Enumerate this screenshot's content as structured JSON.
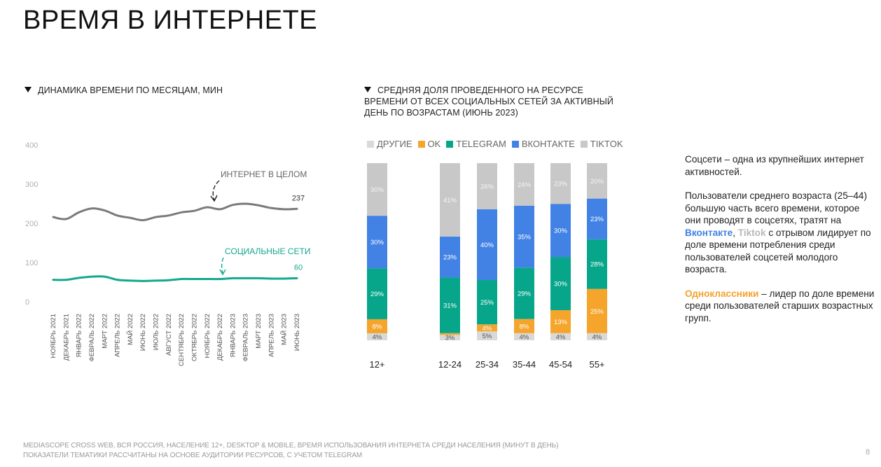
{
  "page": {
    "title": "ВРЕМЯ В ИНТЕРНЕТЕ",
    "page_number": "8"
  },
  "footer": {
    "line1": "MEDIASCOPE CROSS WEB, ВСЯ РОССИЯ, НАСЕЛЕНИЕ 12+, DESKTOP & MOBILE, ВРЕМЯ ИСПОЛЬЗОВАНИЯ ИНТЕРНЕТА СРЕДИ НАСЕЛЕНИЯ (МИНУТ В ДЕНЬ)",
    "line2": "ПОКАЗАТЕЛИ ТЕМАТИКИ РАССЧИТАНЫ НА ОСНОВЕ АУДИТОРИИ РЕСУРСОВ, С УЧЕТОМ TELEGRAM"
  },
  "side_text": {
    "p1": "Соцсети – одна из крупнейших интернет активностей.",
    "p2_a": "Пользователи среднего возраста (25–44) большую часть всего времени, которое они проводят в соцсетях, тратят на ",
    "p2_vk": "Вконтакте",
    "p2_sep": ", ",
    "p2_tt": "Tiktok",
    "p2_b": " с отрывом лидирует по доле времени потребления среди пользователей соцсетей молодого возраста.",
    "p3_ok": "Одноклассники",
    "p3_b": " – лидер по доле времени среди пользователей старших возрастных групп."
  },
  "colors": {
    "internet": "#7a7a7a",
    "social": "#13a88f",
    "other": "#d9d9d9",
    "ok": "#f5a52c",
    "telegram": "#07a68b",
    "vk": "#4282e5",
    "tiktok": "#c8c8c8"
  },
  "chart_data": [
    {
      "type": "line",
      "title": "ДИНАМИКА ВРЕМЕНИ ПО МЕСЯЦАМ, МИН",
      "xlabel": "",
      "ylabel": "",
      "ylim": [
        0,
        400
      ],
      "yticks": [
        "0",
        "100",
        "200",
        "300",
        "400"
      ],
      "ytick_values": [
        0,
        100,
        200,
        300,
        400
      ],
      "grid": false,
      "categories": [
        "НОЯБРЬ 2021",
        "ДЕКАБРЬ 2021",
        "ЯНВАРЬ 2022",
        "ФЕВРАЛЬ 2022",
        "МАРТ 2022",
        "АПРЕЛЬ 2022",
        "МАЙ 2022",
        "ИЮНЬ 2022",
        "ИЮЛЬ 2022",
        "АВГУСТ 2022",
        "СЕНТЯБРЬ 2022",
        "ОКТЯБРЬ 2022",
        "НОЯБРЬ 2022",
        "ДЕКАБРЬ 2022",
        "ЯНВАРЬ 2023",
        "ФЕВРАЛЬ 2023",
        "МАРТ 2023",
        "АПРЕЛЬ 2023",
        "МАЙ 2023",
        "ИЮНЬ 2023"
      ],
      "series": [
        {
          "name": "ИНТЕРНЕТ В ЦЕЛОМ",
          "key": "internet",
          "end_label": "237",
          "values": [
            216,
            211,
            228,
            238,
            233,
            220,
            214,
            208,
            216,
            220,
            228,
            232,
            241,
            236,
            247,
            250,
            246,
            239,
            236,
            237
          ]
        },
        {
          "name": "СОЦИАЛЬНЫЕ СЕТИ",
          "key": "social",
          "end_label": "60",
          "values": [
            56,
            56,
            61,
            64,
            64,
            56,
            54,
            53,
            54,
            55,
            58,
            58,
            58,
            58,
            60,
            60,
            60,
            59,
            59,
            60
          ]
        }
      ]
    },
    {
      "type": "bar",
      "stacked": true,
      "percent": true,
      "title": "СРЕДНЯЯ ДОЛЯ ПРОВЕДЕННОГО НА РЕСУРСЕ ВРЕМЕНИ ОТ ВСЕХ СОЦИАЛЬНЫХ СЕТЕЙ ЗА АКТИВНЫЙ ДЕНЬ ПО ВОЗРАСТАМ (ИЮНЬ 2023)",
      "legend": [
        "ДРУГИЕ",
        "OK",
        "TELEGRAM",
        "ВКОНТАКТЕ",
        "TIKTOK"
      ],
      "legend_position": "top-left",
      "categories": [
        "12+",
        "12-24",
        "25-34",
        "35-44",
        "45-54",
        "55+"
      ],
      "series": [
        {
          "name": "ДРУГИЕ",
          "key": "other",
          "values": [
            4,
            3,
            5,
            4,
            4,
            4
          ],
          "labels": [
            "4%",
            "3%",
            "5%",
            "4%",
            "4%",
            "4%"
          ]
        },
        {
          "name": "OK",
          "key": "ok",
          "values": [
            8,
            1,
            4,
            8,
            13,
            25
          ],
          "labels": [
            "8%",
            "",
            "4%",
            "8%",
            "13%",
            "25%"
          ]
        },
        {
          "name": "TELEGRAM",
          "key": "telegram",
          "values": [
            29,
            31,
            25,
            29,
            30,
            28
          ],
          "labels": [
            "29%",
            "31%",
            "25%",
            "29%",
            "30%",
            "28%"
          ]
        },
        {
          "name": "ВКОНТАКТЕ",
          "key": "vk",
          "values": [
            30,
            23,
            40,
            35,
            30,
            23
          ],
          "labels": [
            "30%",
            "23%",
            "40%",
            "35%",
            "30%",
            "23%"
          ]
        },
        {
          "name": "TIKTOK",
          "key": "tiktok",
          "values": [
            30,
            41,
            26,
            24,
            23,
            20
          ],
          "labels": [
            "30%",
            "41%",
            "26%",
            "24%",
            "23%",
            "20%"
          ]
        }
      ]
    }
  ]
}
